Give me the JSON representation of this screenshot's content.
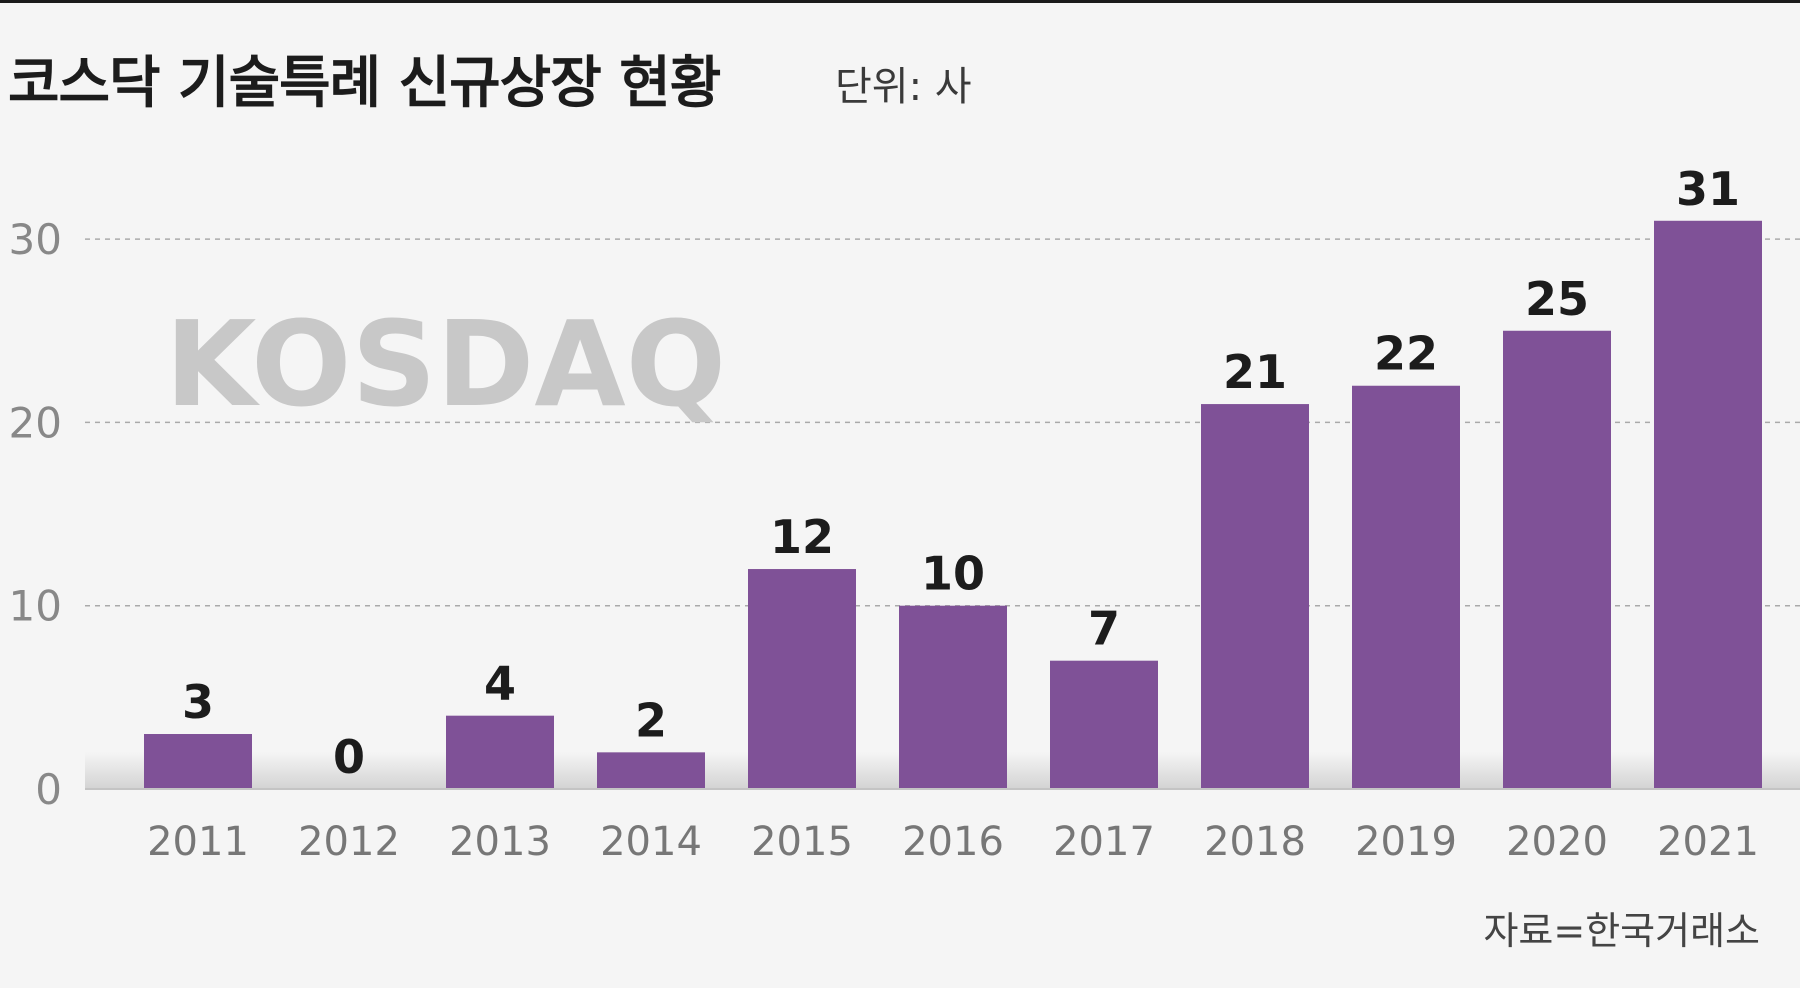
{
  "header": {
    "title": "코스닥 기술특례 신규상장 현황",
    "unit": "단위: 사"
  },
  "watermark": "KOSDAQ",
  "source": "자료=한국거래소",
  "colors": {
    "bar": "#7f5197",
    "background": "#f5f5f5",
    "grid": "#aaaaaa"
  },
  "chart_data": {
    "type": "bar",
    "categories": [
      "2011",
      "2012",
      "2013",
      "2014",
      "2015",
      "2016",
      "2017",
      "2018",
      "2019",
      "2020",
      "2021"
    ],
    "values": [
      3,
      0,
      4,
      2,
      12,
      10,
      7,
      21,
      22,
      25,
      31
    ],
    "ylim": [
      0,
      30
    ],
    "yticks": [
      0,
      10,
      20,
      30
    ],
    "grid": true,
    "legend": "none"
  }
}
